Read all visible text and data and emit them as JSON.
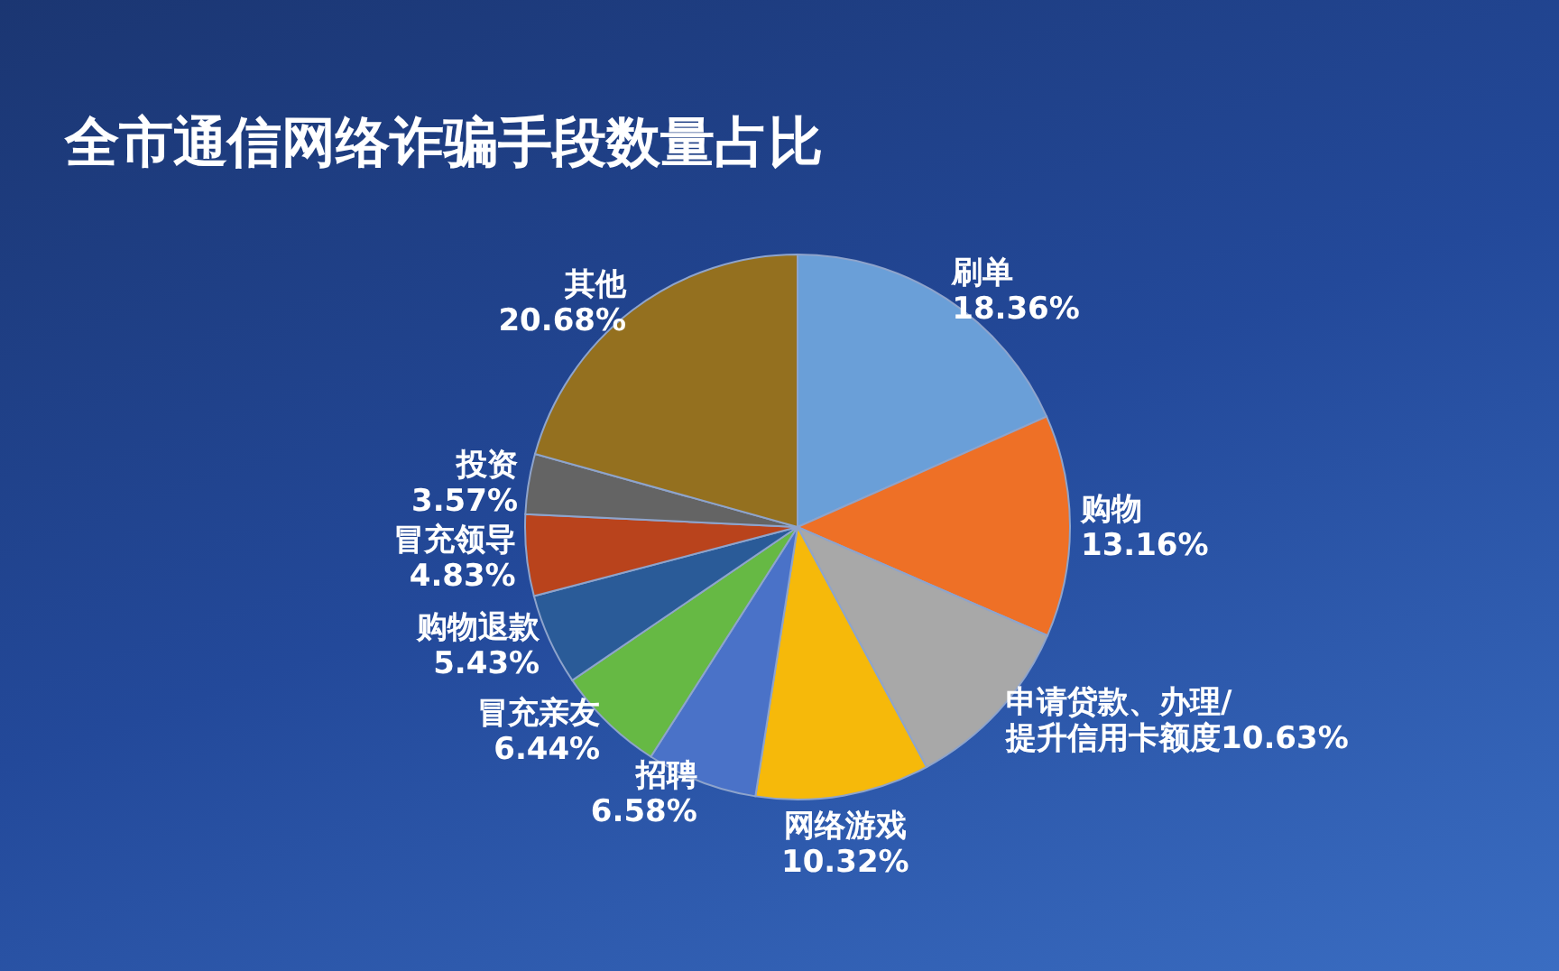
{
  "chart_data": {
    "type": "pie",
    "title": "全市通信网络诈骗手段数量占比",
    "categories": [
      "刷单",
      "购物",
      "申请贷款、办理/提升信用卡额度",
      "网络游戏",
      "招聘",
      "冒充亲友",
      "购物退款",
      "冒充领导",
      "投资",
      "其他"
    ],
    "values": [
      18.36,
      13.16,
      10.63,
      10.32,
      6.58,
      6.44,
      5.43,
      4.83,
      3.57,
      20.68
    ],
    "colors": [
      "#6a9fd8",
      "#ee7026",
      "#a8a8a8",
      "#f6b90a",
      "#4a72c8",
      "#66b944",
      "#2a5b98",
      "#b9431c",
      "#646464",
      "#94701f"
    ],
    "value_labels": [
      "18.36%",
      "13.16%",
      "10.63%",
      "10.32%",
      "6.58%",
      "6.44%",
      "5.43%",
      "4.83%",
      "3.57%",
      "20.68%"
    ]
  }
}
